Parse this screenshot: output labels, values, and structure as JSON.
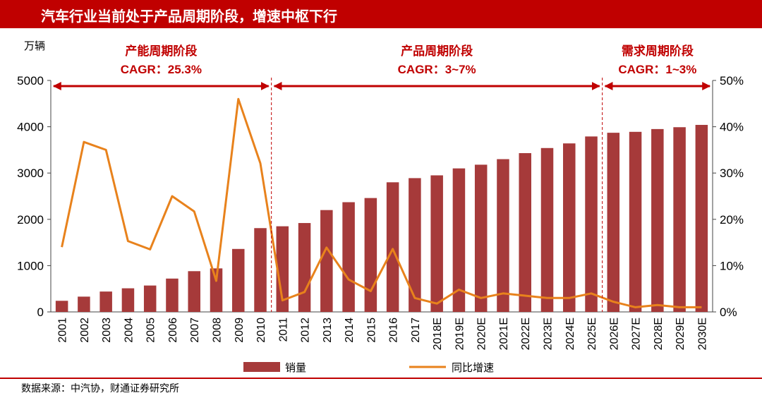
{
  "title": "汽车行业当前处于产品周期阶段，增速中枢下行",
  "source": "数据来源：中汽协，财通证券研究所",
  "colors": {
    "title_bg": "#c00000",
    "bar": "#a63a3a",
    "line": "#e8821c",
    "arrow": "#c00000"
  },
  "chart_data": {
    "type": "bar",
    "unit_label": "万辆",
    "categories": [
      "2001",
      "2002",
      "2003",
      "2004",
      "2005",
      "2006",
      "2007",
      "2008",
      "2009",
      "2010",
      "2011",
      "2012",
      "2013",
      "2014",
      "2015",
      "2016",
      "2017",
      "2018E",
      "2019E",
      "2020E",
      "2021E",
      "2022E",
      "2023E",
      "2024E",
      "2025E",
      "2026E",
      "2027E",
      "2028E",
      "2029E",
      "2030E"
    ],
    "series": [
      {
        "name": "销量",
        "type": "bar",
        "axis": "left",
        "values": [
          240,
          330,
          440,
          510,
          570,
          720,
          880,
          940,
          1360,
          1810,
          1850,
          1920,
          2200,
          2370,
          2460,
          2800,
          2890,
          2950,
          3100,
          3180,
          3300,
          3430,
          3540,
          3640,
          3790,
          3870,
          3890,
          3950,
          3990,
          4040
        ]
      },
      {
        "name": "同比增速",
        "type": "line",
        "axis": "right",
        "values": [
          14,
          36.7,
          35,
          15.3,
          13.5,
          25,
          21.7,
          6.7,
          46,
          32.1,
          2.5,
          4.3,
          13.9,
          7,
          4.5,
          13.6,
          3,
          1.8,
          4.8,
          3,
          4,
          3.5,
          3,
          3,
          4,
          2.2,
          1,
          1.5,
          1,
          1
        ]
      }
    ],
    "y_left": {
      "min": 0,
      "max": 5000,
      "ticks": [
        0,
        1000,
        2000,
        3000,
        4000,
        5000
      ]
    },
    "y_right": {
      "min": 0,
      "max": 50,
      "ticks": [
        "0%",
        "10%",
        "20%",
        "30%",
        "40%",
        "50%"
      ]
    },
    "phases": [
      {
        "name": "产能周期阶段",
        "cagr": "CAGR：25.3%",
        "start_index": 0,
        "end_index": 9
      },
      {
        "name": "产品周期阶段",
        "cagr": "CAGR：3~7%",
        "start_index": 10,
        "end_index": 24
      },
      {
        "name": "需求周期阶段",
        "cagr": "CAGR：1~3%",
        "start_index": 25,
        "end_index": 29
      }
    ],
    "legend": [
      "销量",
      "同比增速"
    ],
    "legend_position": "bottom"
  }
}
